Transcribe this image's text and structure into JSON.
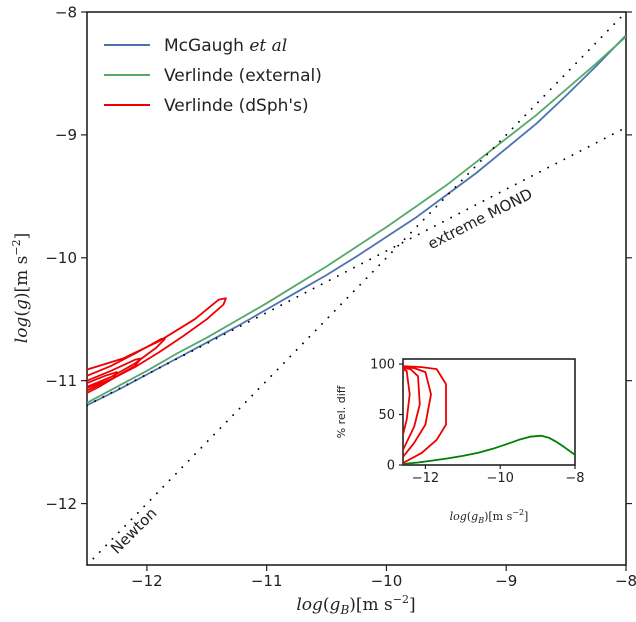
{
  "chart_data": [
    {
      "type": "line",
      "xlabel": "log(g_B)[m s^-2]",
      "ylabel": "log(g)[m s^-2]",
      "xlim": [
        -12.5,
        -8
      ],
      "ylim": [
        -12.5,
        -8
      ],
      "xticks": [
        "−12",
        "−11",
        "−10",
        "−9",
        "−8"
      ],
      "xtick_values": [
        -12,
        -11,
        -10,
        -9,
        -8
      ],
      "yticks": [
        "−8",
        "−9",
        "−10",
        "−11",
        "−12"
      ],
      "ytick_values": [
        -8,
        -9,
        -10,
        -11,
        -12
      ],
      "legend_position": "top-left",
      "grid": false,
      "series": [
        {
          "name": "McGaugh et al",
          "name_main": "McGaugh",
          "name_ital": "et al",
          "color": "#4c72b0",
          "style": "solid",
          "x": [
            -12.5,
            -12.25,
            -12,
            -11.75,
            -11.5,
            -11.25,
            -11,
            -10.75,
            -10.5,
            -10.25,
            -10,
            -9.75,
            -9.5,
            -9.25,
            -9,
            -8.75,
            -8.5,
            -8.25,
            -8
          ],
          "y": [
            -11.2,
            -11.08,
            -10.95,
            -10.82,
            -10.69,
            -10.56,
            -10.42,
            -10.28,
            -10.14,
            -9.99,
            -9.83,
            -9.67,
            -9.49,
            -9.31,
            -9.11,
            -8.91,
            -8.68,
            -8.44,
            -8.19
          ]
        },
        {
          "name": "Verlinde (external)",
          "color": "#55a868",
          "style": "solid",
          "x": [
            -12.5,
            -12.25,
            -12,
            -11.75,
            -11.5,
            -11.25,
            -11,
            -10.75,
            -10.5,
            -10.25,
            -10,
            -9.75,
            -9.5,
            -9.25,
            -9,
            -8.75,
            -8.5,
            -8.25,
            -8
          ],
          "y": [
            -11.18,
            -11.05,
            -10.92,
            -10.78,
            -10.65,
            -10.51,
            -10.37,
            -10.22,
            -10.07,
            -9.91,
            -9.75,
            -9.58,
            -9.41,
            -9.22,
            -9.03,
            -8.84,
            -8.63,
            -8.42,
            -8.2
          ]
        },
        {
          "name": "Verlinde (dSph's)",
          "color": "#ee0000",
          "style": "solid",
          "contours": [
            [
              [
                -12.5,
                -10.91
              ],
              [
                -12.2,
                -10.82
              ],
              [
                -11.9,
                -10.68
              ],
              [
                -11.6,
                -10.5
              ],
              [
                -11.4,
                -10.34
              ],
              [
                -11.34,
                -10.33
              ],
              [
                -11.36,
                -10.38
              ],
              [
                -11.5,
                -10.5
              ],
              [
                -11.7,
                -10.64
              ],
              [
                -11.9,
                -10.77
              ],
              [
                -12.1,
                -10.89
              ],
              [
                -12.3,
                -10.99
              ],
              [
                -12.5,
                -11.08
              ]
            ],
            [
              [
                -12.5,
                -10.96
              ],
              [
                -12.3,
                -10.88
              ],
              [
                -12.1,
                -10.78
              ],
              [
                -11.88,
                -10.66
              ],
              [
                -11.85,
                -10.66
              ],
              [
                -11.92,
                -10.73
              ],
              [
                -12.1,
                -10.86
              ],
              [
                -12.3,
                -10.97
              ],
              [
                -12.5,
                -11.05
              ]
            ],
            [
              [
                -12.5,
                -11.0
              ],
              [
                -12.3,
                -10.92
              ],
              [
                -12.1,
                -10.83
              ],
              [
                -12.05,
                -10.82
              ],
              [
                -12.1,
                -10.88
              ],
              [
                -12.3,
                -10.99
              ],
              [
                -12.5,
                -11.06
              ]
            ],
            [
              [
                -12.5,
                -11.02
              ],
              [
                -12.35,
                -10.96
              ],
              [
                -12.25,
                -10.93
              ],
              [
                -12.28,
                -10.98
              ],
              [
                -12.4,
                -11.05
              ],
              [
                -12.5,
                -11.1
              ]
            ]
          ]
        },
        {
          "name": "",
          "color": "#000000",
          "style": "dotted",
          "x": [
            -12.5,
            -8
          ],
          "y": [
            -12.5,
            -8
          ]
        },
        {
          "name": "",
          "color": "#000000",
          "style": "dotted",
          "x": [
            -12.5,
            -8
          ],
          "y": [
            -11.2,
            -8.94
          ]
        }
      ],
      "annotations": [
        {
          "text": "extreme MOND",
          "x": -9.2,
          "y": -9.72,
          "angle": -27
        },
        {
          "text": "Newton",
          "x": -12.08,
          "y": -12.25,
          "angle": -45
        }
      ]
    },
    {
      "type": "line",
      "inset": true,
      "xlabel": "log(g_B)[m s^-2]",
      "ylabel": "% rel. diff",
      "xlim": [
        -12.6,
        -8
      ],
      "ylim": [
        0,
        105
      ],
      "xticks": [
        "−12",
        "−10",
        "−8"
      ],
      "xtick_values": [
        -12,
        -10,
        -8
      ],
      "yticks": [
        "100",
        "50",
        "0"
      ],
      "ytick_values": [
        100,
        50,
        0
      ],
      "series": [
        {
          "name": "",
          "color": "#008000",
          "x": [
            -12.6,
            -12.2,
            -11.8,
            -11.4,
            -11,
            -10.6,
            -10.2,
            -9.8,
            -9.5,
            -9.2,
            -8.9,
            -8.7,
            -8.5,
            -8.3,
            -8
          ],
          "y": [
            1,
            2.5,
            4.5,
            6.5,
            9,
            12,
            16,
            21,
            25,
            28,
            29,
            27,
            23,
            18,
            10
          ]
        },
        {
          "name": "",
          "color": "#ee0000",
          "contours": [
            [
              [
                -12.6,
                98
              ],
              [
                -12.1,
                97
              ],
              [
                -11.7,
                95
              ],
              [
                -11.45,
                80
              ],
              [
                -11.45,
                40
              ],
              [
                -11.7,
                25
              ],
              [
                -12.1,
                12
              ],
              [
                -12.6,
                2
              ]
            ],
            [
              [
                -12.6,
                97
              ],
              [
                -12.3,
                96
              ],
              [
                -12.0,
                92
              ],
              [
                -11.85,
                70
              ],
              [
                -12.0,
                40
              ],
              [
                -12.3,
                22
              ],
              [
                -12.6,
                8
              ]
            ],
            [
              [
                -12.6,
                96
              ],
              [
                -12.4,
                95
              ],
              [
                -12.2,
                88
              ],
              [
                -12.15,
                60
              ],
              [
                -12.3,
                38
              ],
              [
                -12.6,
                15
              ]
            ],
            [
              [
                -12.6,
                95
              ],
              [
                -12.5,
                93
              ],
              [
                -12.42,
                70
              ],
              [
                -12.5,
                45
              ],
              [
                -12.6,
                30
              ]
            ]
          ]
        }
      ]
    }
  ]
}
